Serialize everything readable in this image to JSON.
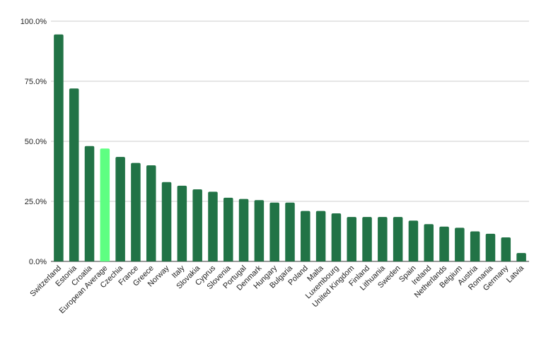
{
  "chart_data": {
    "type": "bar",
    "categories": [
      "Switzerland",
      "Estonia",
      "Croatia",
      "European Average",
      "Czechia",
      "France",
      "Greece",
      "Norway",
      "Italy",
      "Slovakia",
      "Cyprus",
      "Slovenia",
      "Portugal",
      "Denmark",
      "Hungary",
      "Bulgaria",
      "Poland",
      "Malta",
      "Luxembourg",
      "United Kingdom",
      "Finland",
      "Lithuania",
      "Sweden",
      "Spain",
      "Ireland",
      "Netherlands",
      "Belgium",
      "Austria",
      "Romania",
      "Germany",
      "Latvia"
    ],
    "values": [
      94.5,
      72.0,
      48.0,
      47.0,
      43.5,
      41.0,
      40.0,
      33.0,
      31.5,
      30.0,
      29.0,
      26.5,
      26.0,
      25.5,
      24.5,
      24.5,
      21.0,
      21.0,
      20.0,
      18.5,
      18.5,
      18.5,
      18.5,
      17.0,
      15.5,
      14.5,
      14.0,
      12.5,
      11.5,
      10.0,
      3.5
    ],
    "ylim": [
      0,
      100
    ],
    "yticks": [
      "0.0%",
      "25.0%",
      "50.0%",
      "75.0%",
      "100.0%"
    ],
    "ytick_values": [
      0,
      25,
      50,
      75,
      100
    ],
    "grid": true,
    "legend": "none",
    "title": "",
    "xlabel": "",
    "ylabel": "",
    "colors": {
      "bar": "#217346",
      "highlight": "#5eff82",
      "highlight_category": "European Average",
      "grid": "#cccccc",
      "axis": "#333333"
    }
  }
}
